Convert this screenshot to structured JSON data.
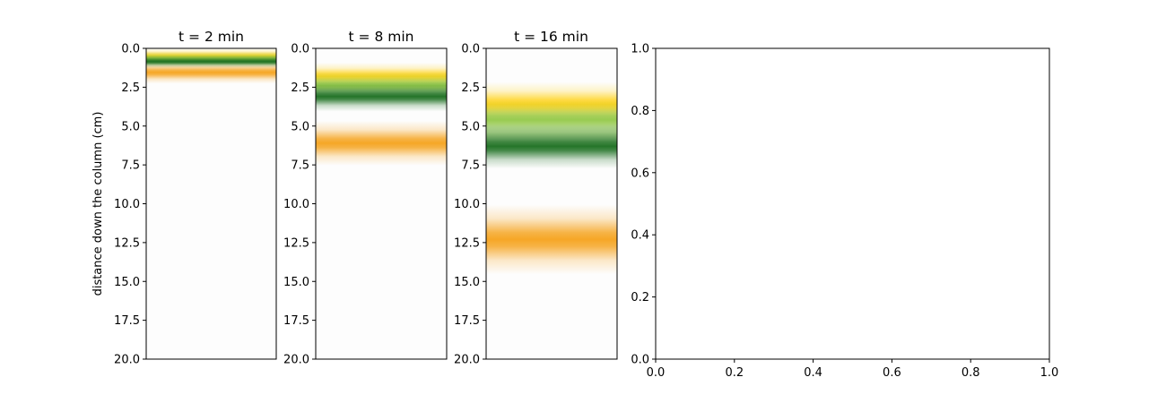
{
  "chart_data": [
    {
      "type": "heatmap",
      "title": "t = 2 min",
      "ylabel": "distance down the column (cm)",
      "ylim": [
        20,
        0
      ],
      "yticks": [
        "0.0",
        "2.5",
        "5.0",
        "7.5",
        "10.0",
        "12.5",
        "15.0",
        "17.5",
        "20.0"
      ],
      "bands": [
        {
          "color": "#f5a21b",
          "center": 1.55,
          "width": 0.45,
          "opacity": 0.95
        },
        {
          "color": "#ffd21a",
          "center": 0.45,
          "width": 0.35,
          "opacity": 0.95
        },
        {
          "color": "#8cc63e",
          "center": 0.7,
          "width": 0.3,
          "opacity": 0.9
        },
        {
          "color": "#1a6e1f",
          "center": 0.85,
          "width": 0.25,
          "opacity": 0.95
        }
      ]
    },
    {
      "type": "heatmap",
      "title": "t = 8 min",
      "ylim": [
        20,
        0
      ],
      "yticks": [
        "0.0",
        "2.5",
        "5.0",
        "7.5",
        "10.0",
        "12.5",
        "15.0",
        "17.5",
        "20.0"
      ],
      "bands": [
        {
          "color": "#ffd21a",
          "center": 1.8,
          "width": 0.55,
          "opacity": 0.95
        },
        {
          "color": "#8cc63e",
          "center": 2.4,
          "width": 0.55,
          "opacity": 0.9
        },
        {
          "color": "#1a6e1f",
          "center": 3.1,
          "width": 0.6,
          "opacity": 0.95
        },
        {
          "color": "#f5a21b",
          "center": 6.1,
          "width": 0.9,
          "opacity": 0.95
        }
      ]
    },
    {
      "type": "heatmap",
      "title": "t = 16 min",
      "ylim": [
        20,
        0
      ],
      "yticks": [
        "0.0",
        "2.5",
        "5.0",
        "7.5",
        "10.0",
        "12.5",
        "15.0",
        "17.5",
        "20.0"
      ],
      "bands": [
        {
          "color": "#ffd21a",
          "center": 3.6,
          "width": 0.9,
          "opacity": 0.95
        },
        {
          "color": "#8cc63e",
          "center": 4.6,
          "width": 0.8,
          "opacity": 0.9
        },
        {
          "color": "#a9d27a",
          "center": 5.5,
          "width": 0.7,
          "opacity": 0.7
        },
        {
          "color": "#1a6e1f",
          "center": 6.3,
          "width": 0.9,
          "opacity": 0.95
        },
        {
          "color": "#f5a21b",
          "center": 12.3,
          "width": 1.4,
          "opacity": 0.95
        }
      ]
    },
    {
      "type": "empty",
      "xlim": [
        0,
        1
      ],
      "ylim": [
        0,
        1
      ],
      "xticks": [
        "0.0",
        "0.2",
        "0.4",
        "0.6",
        "0.8",
        "1.0"
      ],
      "yticks": [
        "0.0",
        "0.2",
        "0.4",
        "0.6",
        "0.8",
        "1.0"
      ]
    }
  ]
}
